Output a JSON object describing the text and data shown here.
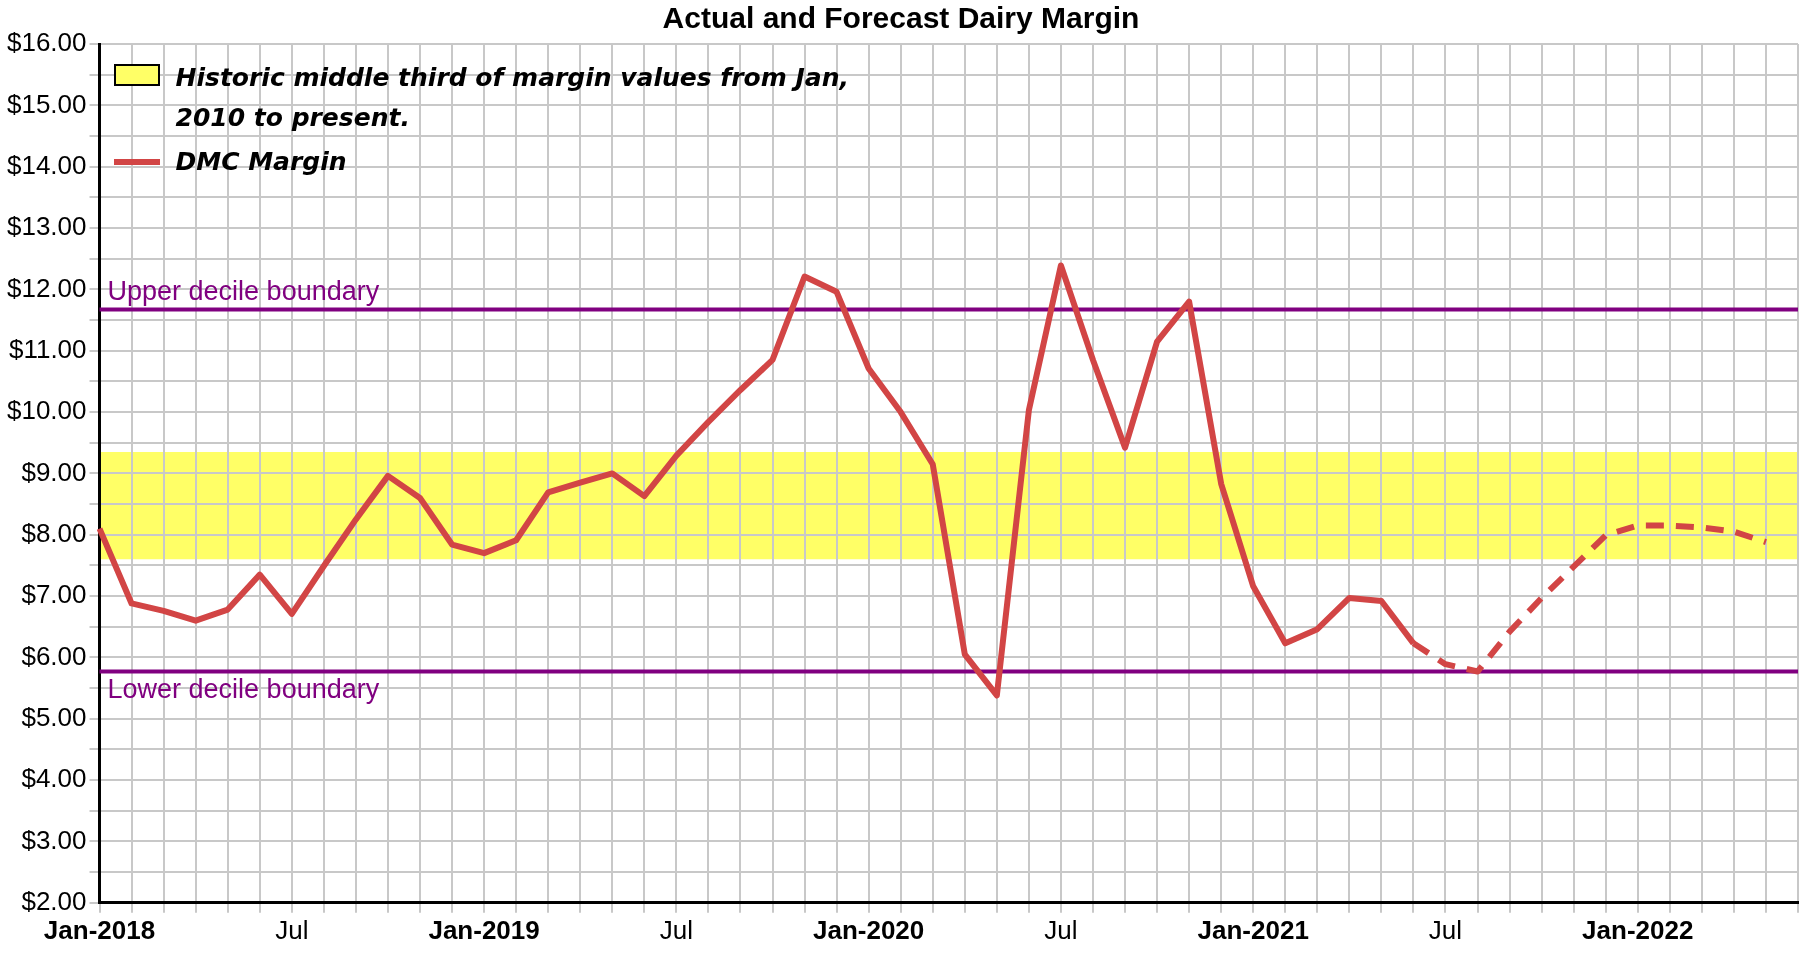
{
  "chart_data": {
    "type": "line",
    "title": "Actual and Forecast Dairy Margin",
    "categories": [
      "Jan-2018",
      null,
      null,
      null,
      null,
      null,
      "Jul",
      null,
      null,
      null,
      null,
      null,
      "Jan-2019",
      null,
      null,
      null,
      null,
      null,
      "Jul",
      null,
      null,
      null,
      null,
      null,
      "Jan-2020",
      null,
      null,
      null,
      null,
      null,
      "Jul",
      null,
      null,
      null,
      null,
      null,
      "Jan-2021",
      null,
      null,
      null,
      null,
      null,
      "Jul",
      null,
      null,
      null,
      null,
      null,
      "Jan-2022",
      null,
      null,
      null,
      null,
      null
    ],
    "series": [
      {
        "name": "DMC Margin",
        "color": "#d24545",
        "line_style": "solid",
        "values": [
          8.1,
          6.88,
          6.76,
          6.6,
          6.78,
          7.35,
          6.71,
          7.49,
          8.25,
          8.96,
          8.6,
          7.84,
          7.7,
          7.91,
          8.69,
          8.85,
          9.0,
          8.63,
          9.29,
          9.84,
          10.36,
          10.85,
          12.21,
          11.96,
          10.71,
          10.0,
          9.15,
          6.05,
          5.38,
          10.03,
          12.39,
          10.85,
          9.42,
          11.15,
          11.8,
          8.83,
          7.16,
          6.23,
          6.46,
          6.97,
          6.92,
          6.23,
          null,
          null,
          null,
          null,
          null,
          null,
          null,
          null,
          null,
          null,
          null,
          null
        ]
      },
      {
        "color": "#d24545",
        "line_style": "dashed",
        "values": [
          null,
          null,
          null,
          null,
          null,
          null,
          null,
          null,
          null,
          null,
          null,
          null,
          null,
          null,
          null,
          null,
          null,
          null,
          null,
          null,
          null,
          null,
          null,
          null,
          null,
          null,
          null,
          null,
          null,
          null,
          null,
          null,
          null,
          null,
          null,
          null,
          null,
          null,
          null,
          null,
          null,
          6.23,
          5.89,
          5.77,
          6.42,
          6.97,
          7.48,
          7.99,
          8.15,
          8.15,
          8.12,
          8.05,
          7.88,
          null
        ]
      }
    ],
    "ylim": [
      2,
      16
    ],
    "yticks": [
      {
        "value": 2,
        "label": "$2.00"
      },
      {
        "value": 2.5,
        "label": null
      },
      {
        "value": 3,
        "label": "$3.00"
      },
      {
        "value": 3.5,
        "label": null
      },
      {
        "value": 4,
        "label": "$4.00"
      },
      {
        "value": 4.5,
        "label": null
      },
      {
        "value": 5,
        "label": "$5.00"
      },
      {
        "value": 5.5,
        "label": null
      },
      {
        "value": 6,
        "label": "$6.00"
      },
      {
        "value": 6.5,
        "label": null
      },
      {
        "value": 7,
        "label": "$7.00"
      },
      {
        "value": 7.5,
        "label": null
      },
      {
        "value": 8,
        "label": "$8.00"
      },
      {
        "value": 8.5,
        "label": null
      },
      {
        "value": 9,
        "label": "$9.00"
      },
      {
        "value": 9.5,
        "label": null
      },
      {
        "value": 10,
        "label": "$10.00"
      },
      {
        "value": 10.5,
        "label": null
      },
      {
        "value": 11,
        "label": "$11.00"
      },
      {
        "value": 11.5,
        "label": null
      },
      {
        "value": 12,
        "label": "$12.00"
      },
      {
        "value": 12.5,
        "label": null
      },
      {
        "value": 13,
        "label": "$13.00"
      },
      {
        "value": 13.5,
        "label": null
      },
      {
        "value": 14,
        "label": "$14.00"
      },
      {
        "value": 14.5,
        "label": null
      },
      {
        "value": 15,
        "label": "$15.00"
      },
      {
        "value": 15.5,
        "label": null
      },
      {
        "value": 16,
        "label": "$16.00"
      }
    ],
    "ref_lines": [
      {
        "axis": "y",
        "value": 11.67,
        "label": "Upper decile boundary",
        "color": "#800080"
      },
      {
        "axis": "y",
        "value": 5.77,
        "label": "Lower decile boundary",
        "color": "#800080"
      }
    ],
    "bands": [
      {
        "axis": "y",
        "from": 7.6,
        "to": 9.35,
        "label": "Historic middle third of margin values from Jan, 2010 to present.",
        "color": "#ffff66"
      }
    ],
    "grid": true,
    "legend": "top left",
    "marker": "none"
  }
}
